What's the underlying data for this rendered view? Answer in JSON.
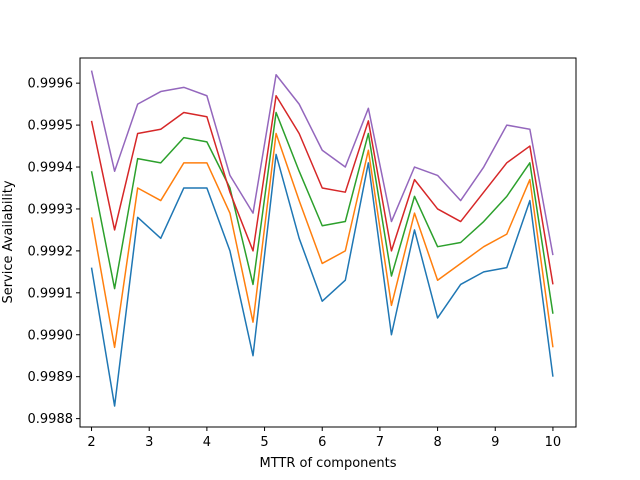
{
  "chart_data": {
    "type": "line",
    "xlabel": "MTTR of components",
    "ylabel": "Service Availability",
    "xlim": [
      1.8,
      10.4
    ],
    "ylim": [
      0.99878,
      0.99966
    ],
    "xticks": [
      2,
      3,
      4,
      5,
      6,
      7,
      8,
      9,
      10
    ],
    "xtick_labels": [
      "2",
      "3",
      "4",
      "5",
      "6",
      "7",
      "8",
      "9",
      "10"
    ],
    "yticks": [
      0.9988,
      0.9989,
      0.999,
      0.9991,
      0.9992,
      0.9993,
      0.9994,
      0.9995,
      0.9996
    ],
    "ytick_labels": [
      "0.9988",
      "0.9989",
      "0.9990",
      "0.9991",
      "0.9992",
      "0.9993",
      "0.9994",
      "0.9995",
      "0.9996"
    ],
    "grid": false,
    "legend": "none",
    "x": [
      2.0,
      2.4,
      2.8,
      3.2,
      3.6,
      4.0,
      4.4,
      4.8,
      5.2,
      5.6,
      6.0,
      6.4,
      6.8,
      7.2,
      7.6,
      8.0,
      8.4,
      8.8,
      9.2,
      9.6,
      10.0
    ],
    "series": [
      {
        "color": "#1f77b4",
        "values": [
          0.99916,
          0.99883,
          0.99928,
          0.99923,
          0.99935,
          0.99935,
          0.9992,
          0.99895,
          0.99943,
          0.99923,
          0.99908,
          0.99913,
          0.99941,
          0.999,
          0.99925,
          0.99904,
          0.99912,
          0.99915,
          0.99916,
          0.99932,
          0.9989
        ]
      },
      {
        "color": "#ff7f0e",
        "values": [
          0.99928,
          0.99897,
          0.99935,
          0.99932,
          0.99941,
          0.99941,
          0.99929,
          0.99903,
          0.99948,
          0.99932,
          0.99917,
          0.9992,
          0.99944,
          0.99907,
          0.99929,
          0.99913,
          0.99917,
          0.99921,
          0.99924,
          0.99937,
          0.99897
        ]
      },
      {
        "color": "#2ca02c",
        "values": [
          0.99939,
          0.99911,
          0.99942,
          0.99941,
          0.99947,
          0.99946,
          0.99935,
          0.99912,
          0.99953,
          0.99939,
          0.99926,
          0.99927,
          0.99948,
          0.99914,
          0.99933,
          0.99921,
          0.99922,
          0.99927,
          0.99933,
          0.99941,
          0.99905
        ]
      },
      {
        "color": "#d62728",
        "values": [
          0.99951,
          0.99925,
          0.99948,
          0.99949,
          0.99953,
          0.99952,
          0.99934,
          0.9992,
          0.99957,
          0.99948,
          0.99935,
          0.99934,
          0.99951,
          0.9992,
          0.99937,
          0.9993,
          0.99927,
          0.99934,
          0.99941,
          0.99945,
          0.99912
        ]
      },
      {
        "color": "#9467bd",
        "values": [
          0.99963,
          0.99939,
          0.99955,
          0.99958,
          0.99959,
          0.99957,
          0.99938,
          0.99929,
          0.99962,
          0.99955,
          0.99944,
          0.9994,
          0.99954,
          0.99927,
          0.9994,
          0.99938,
          0.99932,
          0.9994,
          0.9995,
          0.99949,
          0.99919
        ]
      }
    ]
  }
}
